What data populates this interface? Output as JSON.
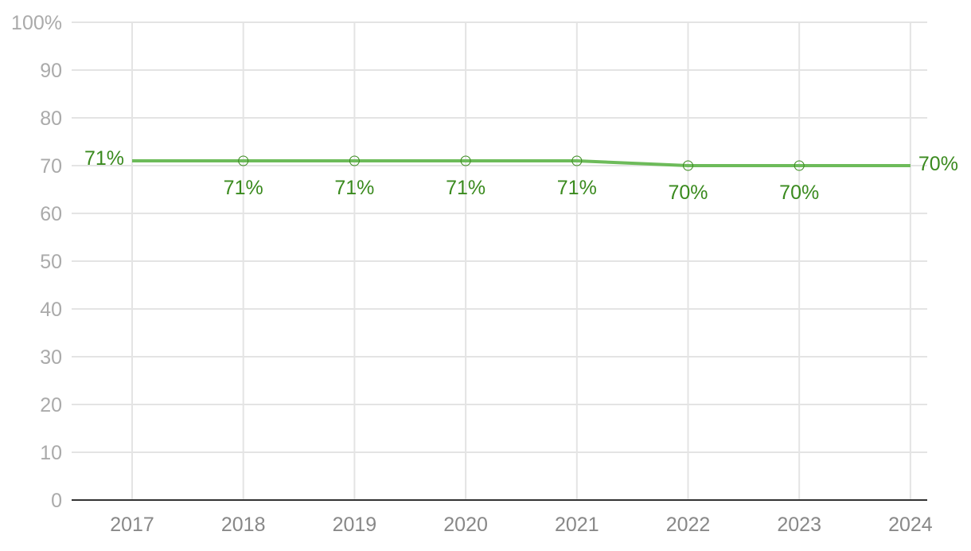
{
  "chart_data": {
    "type": "line",
    "title": "",
    "xlabel": "",
    "ylabel": "",
    "x": [
      "2017",
      "2018",
      "2019",
      "2020",
      "2021",
      "2022",
      "2023",
      "2024"
    ],
    "series": [
      {
        "values": [
          71,
          71,
          71,
          71,
          71,
          70,
          70,
          70
        ],
        "labels": [
          "71%",
          "71%",
          "71%",
          "71%",
          "71%",
          "70%",
          "70%",
          "70%"
        ]
      }
    ],
    "ylim": [
      0,
      100
    ],
    "yticks": [
      "0",
      "10",
      "20",
      "30",
      "40",
      "50",
      "60",
      "70",
      "80",
      "90",
      "100%"
    ],
    "grid": true,
    "legend": "none",
    "colors": {
      "line": "#6dbb5a",
      "label": "#3a8a1e",
      "tick": "#aaaaaa",
      "xtick": "#888888",
      "grid": "#e4e4e4",
      "baseline": "#333333"
    }
  }
}
